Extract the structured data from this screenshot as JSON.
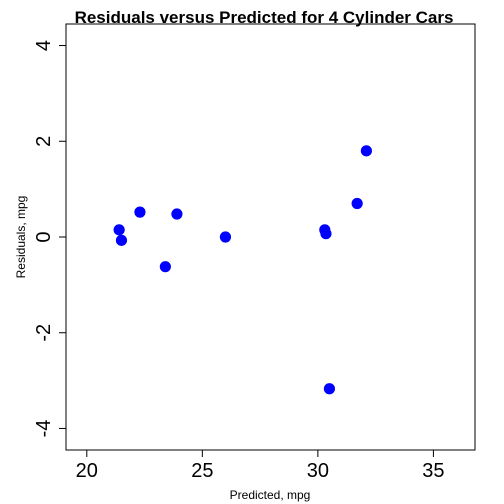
{
  "chart_data": {
    "type": "scatter",
    "title": "Residuals versus Predicted for 4 Cylinder Cars",
    "xlabel": "Predicted, mpg",
    "ylabel": "Residuals, mpg",
    "xlim": [
      19.1,
      36.8
    ],
    "ylim": [
      -4.45,
      4.45
    ],
    "xticks": [
      20,
      25,
      30,
      35
    ],
    "yticks": [
      -4,
      -2,
      0,
      2,
      4
    ],
    "grid": false,
    "point_color": "#0000FF",
    "points": [
      {
        "x": 21.4,
        "y": 0.15
      },
      {
        "x": 21.5,
        "y": -0.07
      },
      {
        "x": 22.3,
        "y": 0.52
      },
      {
        "x": 23.4,
        "y": -0.62
      },
      {
        "x": 23.9,
        "y": 0.48
      },
      {
        "x": 26.0,
        "y": 0.0
      },
      {
        "x": 30.3,
        "y": 0.15
      },
      {
        "x": 30.35,
        "y": 0.07
      },
      {
        "x": 30.5,
        "y": -3.17
      },
      {
        "x": 31.7,
        "y": 0.7
      },
      {
        "x": 32.1,
        "y": 1.8
      }
    ]
  }
}
